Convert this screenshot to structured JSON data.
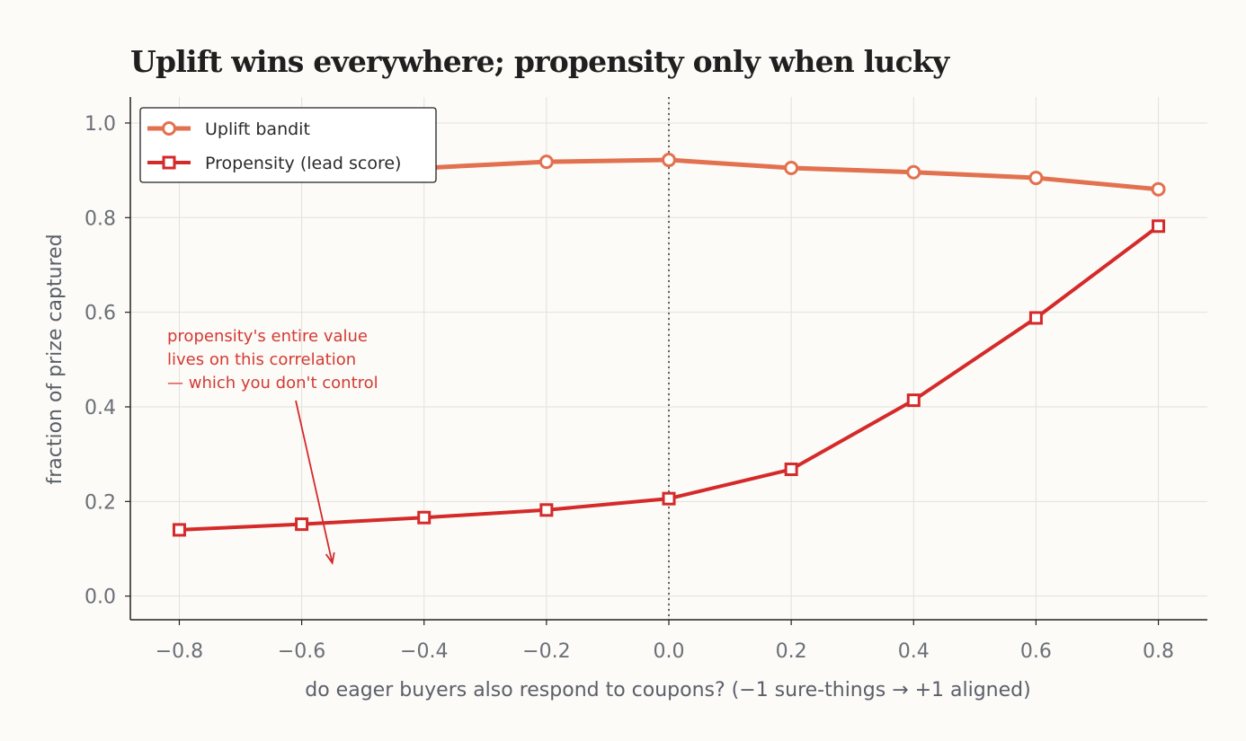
{
  "chart_data": {
    "type": "line",
    "title": "Uplift wins everywhere; propensity only when lucky",
    "xlabel": "do eager buyers also respond to coupons?  (−1 sure-things  →  +1 aligned)",
    "ylabel": "fraction of prize captured",
    "x": [
      -0.8,
      -0.6,
      -0.4,
      -0.2,
      0.0,
      0.2,
      0.4,
      0.6,
      0.8
    ],
    "xticks": [
      "−0.8",
      "−0.6",
      "−0.4",
      "−0.2",
      "0.0",
      "0.2",
      "0.4",
      "0.6",
      "0.8"
    ],
    "yticks": [
      "0.0",
      "0.2",
      "0.4",
      "0.6",
      "0.8",
      "1.0"
    ],
    "xlim": [
      -0.88,
      0.88
    ],
    "ylim": [
      -0.05,
      1.055
    ],
    "grid": true,
    "legend_position": "top-left",
    "reference_line_x": 0.0,
    "series": [
      {
        "name": "Uplift bandit",
        "marker": "circle",
        "color": "#e2714f",
        "values": [
          0.89,
          0.895,
          0.905,
          0.918,
          0.922,
          0.905,
          0.896,
          0.884,
          0.86
        ]
      },
      {
        "name": "Propensity (lead score)",
        "marker": "square",
        "color": "#d42a2a",
        "values": [
          0.14,
          0.152,
          0.166,
          0.182,
          0.206,
          0.268,
          0.414,
          0.588,
          0.782
        ]
      }
    ],
    "annotation": {
      "lines": [
        "propensity's entire value",
        "lives on this correlation",
        "— which you don't control"
      ],
      "color": "#d42a2a",
      "arrow_to": [
        -0.55,
        0.07
      ]
    }
  }
}
